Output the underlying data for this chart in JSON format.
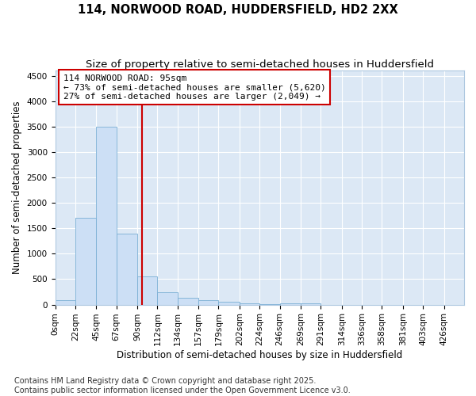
{
  "title_line1": "114, NORWOOD ROAD, HUDDERSFIELD, HD2 2XX",
  "title_line2": "Size of property relative to semi-detached houses in Huddersfield",
  "xlabel": "Distribution of semi-detached houses by size in Huddersfield",
  "ylabel": "Number of semi-detached properties",
  "annotation_title": "114 NORWOOD ROAD: 95sqm",
  "annotation_line2": "← 73% of semi-detached houses are smaller (5,620)",
  "annotation_line3": "27% of semi-detached houses are larger (2,049) →",
  "property_size": 95,
  "bar_color": "#ccdff5",
  "bar_edge_color": "#7aafd4",
  "vline_color": "#cc0000",
  "background_color": "#ffffff",
  "plot_bg_color": "#dce8f5",
  "grid_color": "#ffffff",
  "footer_line1": "Contains HM Land Registry data © Crown copyright and database right 2025.",
  "footer_line2": "Contains public sector information licensed under the Open Government Licence v3.0.",
  "bin_edges": [
    0,
    22,
    45,
    67,
    90,
    112,
    134,
    157,
    179,
    202,
    224,
    246,
    269,
    291,
    314,
    336,
    358,
    381,
    403,
    426,
    448
  ],
  "bar_heights": [
    80,
    1700,
    3500,
    1400,
    550,
    240,
    140,
    80,
    50,
    30,
    5,
    30,
    25,
    0,
    0,
    0,
    0,
    0,
    0,
    0
  ],
  "ylim": [
    0,
    4600
  ],
  "yticks": [
    0,
    500,
    1000,
    1500,
    2000,
    2500,
    3000,
    3500,
    4000,
    4500
  ],
  "title_fontsize": 10.5,
  "subtitle_fontsize": 9.5,
  "axis_label_fontsize": 8.5,
  "tick_fontsize": 7.5,
  "annotation_fontsize": 8,
  "footer_fontsize": 7
}
